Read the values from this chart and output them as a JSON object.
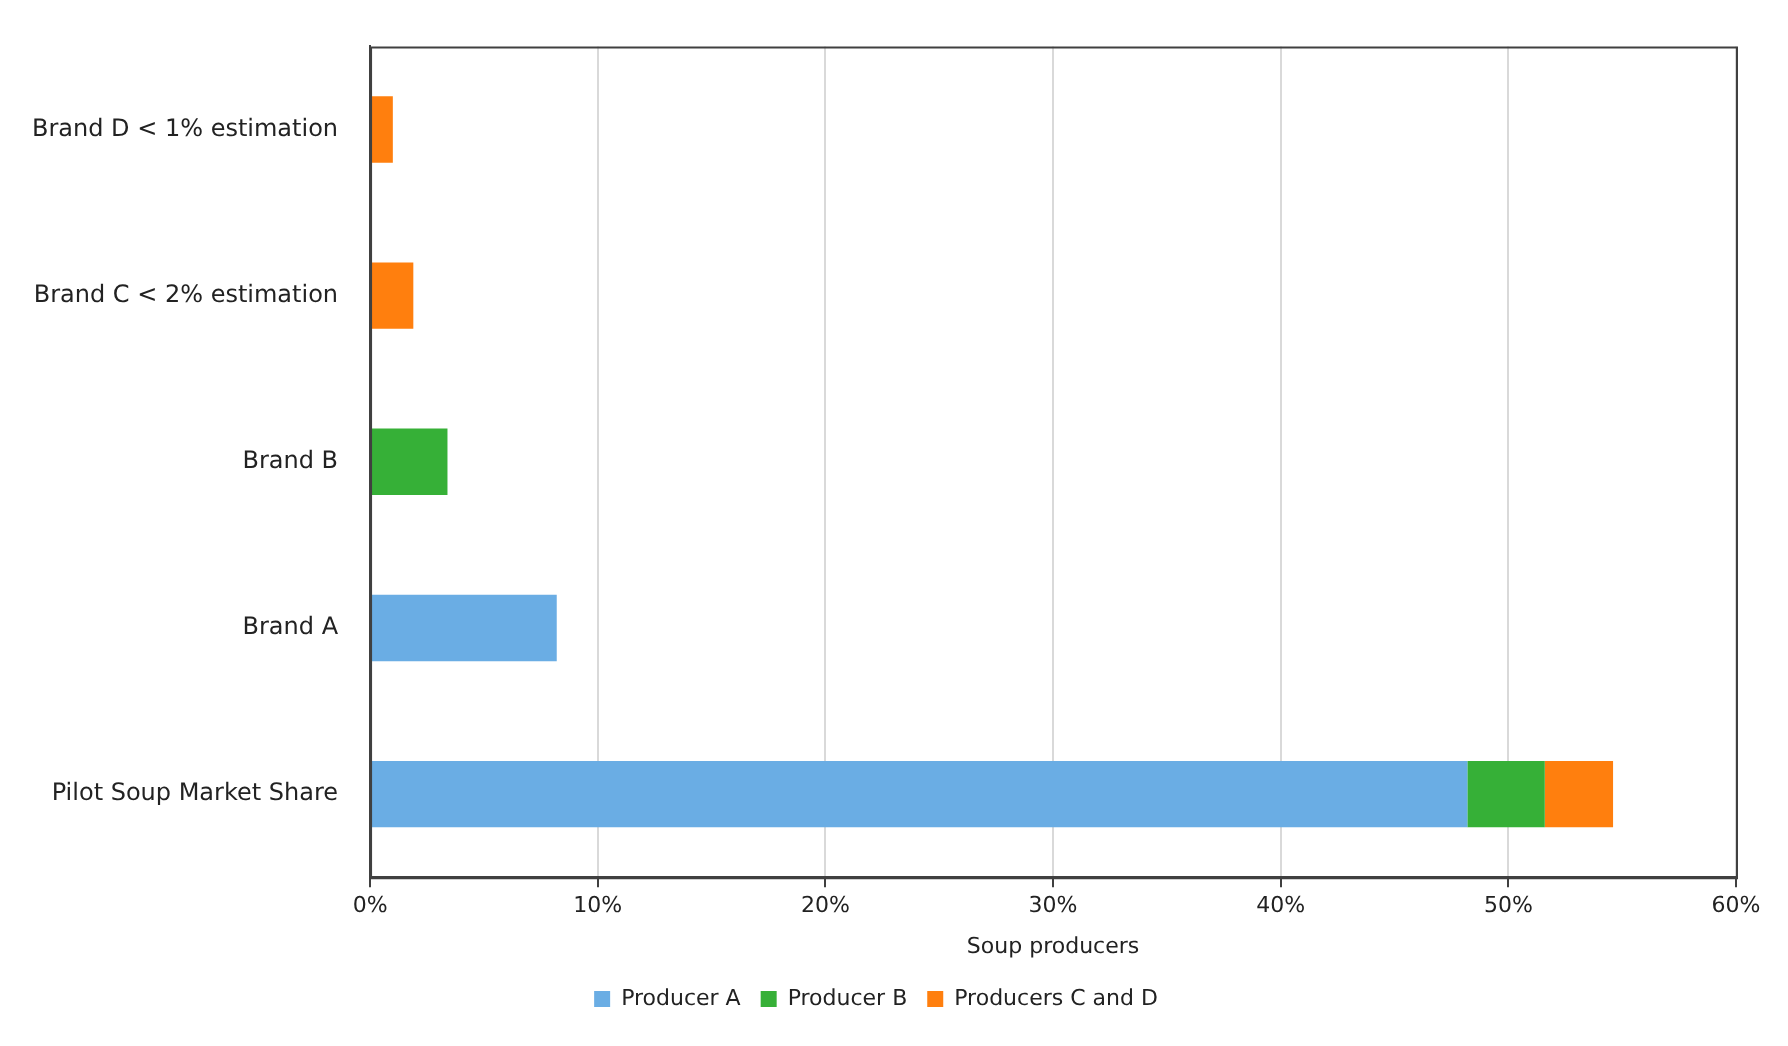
{
  "chart_data": {
    "type": "bar",
    "orientation": "horizontal",
    "stacked": true,
    "xlabel": "Soup producers",
    "categories": [
      "Brand D < 1% estimation",
      "Brand C < 2% estimation",
      "Brand B",
      "Brand A",
      "Pilot Soup Market Share"
    ],
    "series": [
      {
        "name": "Producer A",
        "color": "#6aade4",
        "values": [
          null,
          null,
          null,
          8.2,
          48.2
        ]
      },
      {
        "name": "Producer B",
        "color": "#36b037",
        "values": [
          null,
          null,
          3.4,
          null,
          3.4
        ]
      },
      {
        "name": "Producers C and D",
        "color": "#ff7f0e",
        "values": [
          1.0,
          1.9,
          null,
          null,
          3.0
        ]
      }
    ],
    "xlim": [
      0,
      60
    ],
    "xticks": [
      {
        "value": 0,
        "label": "0%"
      },
      {
        "value": 10,
        "label": "10%"
      },
      {
        "value": 20,
        "label": "20%"
      },
      {
        "value": 30,
        "label": "30%"
      },
      {
        "value": 40,
        "label": "40%"
      },
      {
        "value": 50,
        "label": "50%"
      },
      {
        "value": 60,
        "label": "60%"
      }
    ],
    "grid": "x",
    "legend": "bottom"
  }
}
